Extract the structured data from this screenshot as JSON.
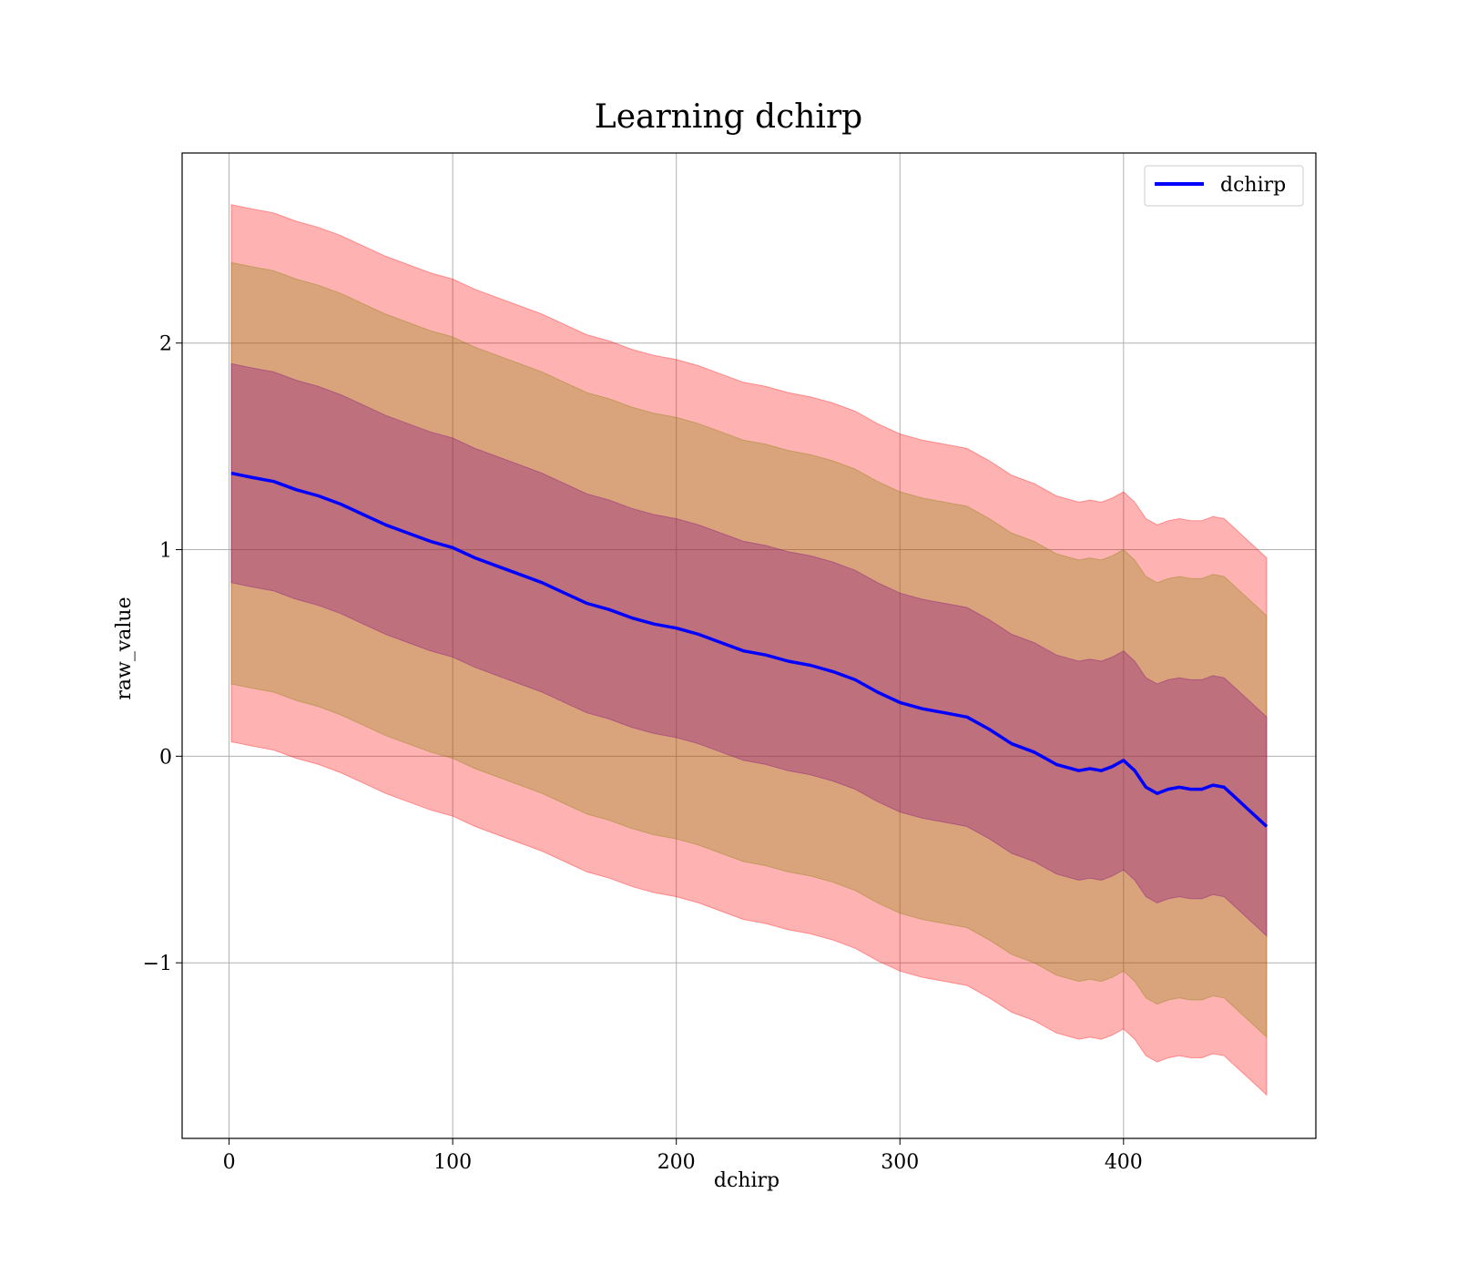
{
  "chart_data": {
    "type": "line",
    "title": "Learning dchirp",
    "xlabel": "dchirp",
    "ylabel": "raw_value",
    "xlim": [
      -21,
      486
    ],
    "ylim": [
      -1.85,
      2.92
    ],
    "xticks": [
      0,
      100,
      200,
      300,
      400
    ],
    "xtick_labels": [
      "0",
      "100",
      "200",
      "300",
      "400"
    ],
    "yticks": [
      -1,
      0,
      1,
      2
    ],
    "ytick_labels": [
      "−1",
      "0",
      "1",
      "2"
    ],
    "grid": true,
    "legend": {
      "position": "top-right",
      "entries": [
        "dchirp"
      ]
    },
    "series": [
      {
        "name": "dchirp",
        "color": "#0000ff",
        "x": [
          1,
          10,
          20,
          30,
          40,
          50,
          60,
          70,
          80,
          90,
          100,
          110,
          120,
          130,
          140,
          150,
          160,
          170,
          180,
          190,
          200,
          210,
          220,
          230,
          240,
          250,
          260,
          270,
          280,
          290,
          300,
          310,
          320,
          330,
          340,
          350,
          360,
          370,
          380,
          385,
          390,
          395,
          400,
          405,
          410,
          415,
          420,
          425,
          430,
          435,
          440,
          445,
          450,
          455,
          460,
          464
        ],
        "y": [
          1.37,
          1.35,
          1.33,
          1.29,
          1.26,
          1.22,
          1.17,
          1.12,
          1.08,
          1.04,
          1.01,
          0.96,
          0.92,
          0.88,
          0.84,
          0.79,
          0.74,
          0.71,
          0.67,
          0.64,
          0.62,
          0.59,
          0.55,
          0.51,
          0.49,
          0.46,
          0.44,
          0.41,
          0.37,
          0.31,
          0.26,
          0.23,
          0.21,
          0.19,
          0.13,
          0.06,
          0.02,
          -0.04,
          -0.07,
          -0.06,
          -0.07,
          -0.05,
          -0.02,
          -0.07,
          -0.15,
          -0.18,
          -0.16,
          -0.15,
          -0.16,
          -0.16,
          -0.14,
          -0.15,
          -0.2,
          -0.25,
          -0.3,
          -0.34
        ]
      }
    ],
    "bands": [
      {
        "color": "#ff0000",
        "opacity": 0.3,
        "lower_offset": -1.3,
        "upper_offset": 1.3
      },
      {
        "color": "#808000",
        "opacity": 0.3,
        "lower_offset": -1.02,
        "upper_offset": 1.02
      },
      {
        "color": "#800080",
        "opacity": 0.3,
        "lower_offset": -0.53,
        "upper_offset": 0.53
      }
    ]
  }
}
